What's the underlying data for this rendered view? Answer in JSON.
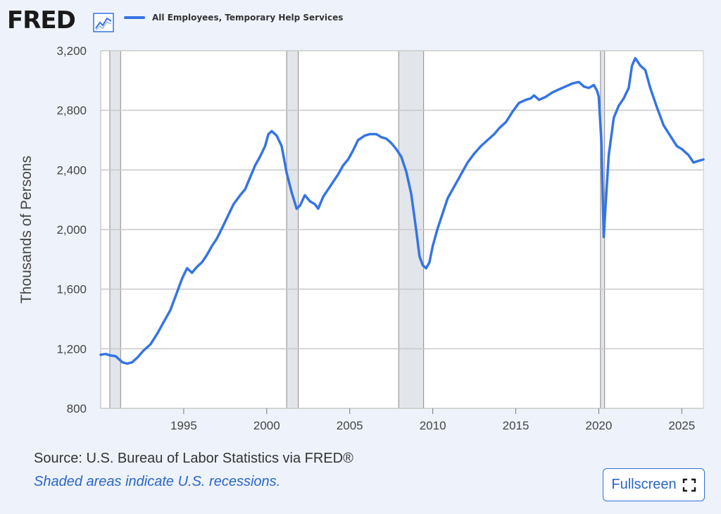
{
  "header": {
    "logo_text": "FRED",
    "logo_trademark": "®",
    "logo_icon": "line-chart-icon"
  },
  "colors": {
    "series": "#3574e3",
    "recession": "#e2e5ea",
    "grid": "#c9c9c9",
    "background": "#eef3fb"
  },
  "chart_data": {
    "type": "line",
    "ylabel": "Thousands of Persons",
    "xlabel": "",
    "ylim": [
      800,
      3200
    ],
    "yticks": [
      800,
      1200,
      1600,
      2000,
      2400,
      2800,
      3200
    ],
    "ytick_labels": [
      "800",
      "1,200",
      "1,600",
      "2,000",
      "2,400",
      "2,800",
      "3,200"
    ],
    "xlim": [
      1990.0,
      2026.3
    ],
    "xticks": [
      1995,
      2000,
      2005,
      2010,
      2015,
      2020,
      2025
    ],
    "xtick_labels": [
      "1995",
      "2000",
      "2005",
      "2010",
      "2015",
      "2020",
      "2025"
    ],
    "legend_position": "top-left",
    "grid": true,
    "recessions": [
      [
        1990.55,
        1991.2
      ],
      [
        2001.2,
        2001.9
      ],
      [
        2007.95,
        2009.45
      ],
      [
        2020.1,
        2020.35
      ]
    ],
    "series": [
      {
        "name": "All Employees, Temporary Help Services",
        "x": [
          1990.0,
          1990.3,
          1990.6,
          1990.9,
          1991.1,
          1991.3,
          1991.6,
          1991.9,
          1992.2,
          1992.6,
          1993.0,
          1993.4,
          1993.8,
          1994.2,
          1994.6,
          1994.9,
          1995.2,
          1995.5,
          1995.8,
          1996.1,
          1996.4,
          1996.7,
          1997.0,
          1997.4,
          1997.7,
          1998.0,
          1998.4,
          1998.7,
          1999.0,
          1999.3,
          1999.6,
          1999.9,
          2000.1,
          2000.3,
          2000.6,
          2000.9,
          2001.2,
          2001.5,
          2001.8,
          2002.0,
          2002.3,
          2002.6,
          2002.9,
          2003.1,
          2003.4,
          2003.7,
          2004.0,
          2004.3,
          2004.6,
          2004.9,
          2005.2,
          2005.5,
          2005.9,
          2006.2,
          2006.6,
          2006.9,
          2007.2,
          2007.5,
          2007.8,
          2008.1,
          2008.4,
          2008.7,
          2009.0,
          2009.2,
          2009.4,
          2009.6,
          2009.8,
          2010.0,
          2010.3,
          2010.6,
          2010.9,
          2011.2,
          2011.5,
          2011.8,
          2012.1,
          2012.5,
          2012.9,
          2013.3,
          2013.7,
          2014.0,
          2014.4,
          2014.8,
          2015.2,
          2015.6,
          2015.9,
          2016.1,
          2016.4,
          2016.8,
          2017.2,
          2017.6,
          2018.0,
          2018.4,
          2018.8,
          2019.1,
          2019.4,
          2019.7,
          2019.9,
          2020.0,
          2020.15,
          2020.3,
          2020.4,
          2020.6,
          2020.9,
          2021.2,
          2021.5,
          2021.8,
          2022.0,
          2022.2,
          2022.5,
          2022.8,
          2023.1,
          2023.5,
          2023.9,
          2024.3,
          2024.7,
          2025.0,
          2025.4,
          2025.7,
          2026.0,
          2026.3
        ],
        "values": [
          1160,
          1165,
          1155,
          1150,
          1130,
          1110,
          1100,
          1110,
          1140,
          1190,
          1230,
          1300,
          1380,
          1460,
          1580,
          1670,
          1740,
          1710,
          1750,
          1780,
          1830,
          1890,
          1940,
          2030,
          2100,
          2170,
          2230,
          2270,
          2350,
          2430,
          2490,
          2560,
          2640,
          2660,
          2630,
          2560,
          2380,
          2250,
          2140,
          2160,
          2230,
          2190,
          2170,
          2140,
          2220,
          2270,
          2320,
          2370,
          2430,
          2470,
          2530,
          2600,
          2630,
          2640,
          2640,
          2620,
          2610,
          2580,
          2540,
          2490,
          2390,
          2240,
          2000,
          1820,
          1760,
          1740,
          1780,
          1890,
          2010,
          2110,
          2210,
          2270,
          2330,
          2390,
          2450,
          2510,
          2560,
          2600,
          2640,
          2680,
          2720,
          2790,
          2850,
          2870,
          2880,
          2900,
          2870,
          2890,
          2920,
          2940,
          2960,
          2980,
          2990,
          2960,
          2950,
          2970,
          2930,
          2890,
          2600,
          1950,
          2150,
          2500,
          2750,
          2830,
          2880,
          2950,
          3100,
          3150,
          3100,
          3070,
          2950,
          2820,
          2700,
          2630,
          2560,
          2540,
          2500,
          2450,
          2460,
          2470
        ]
      }
    ]
  },
  "footer": {
    "source": "Source: U.S. Bureau of Labor Statistics via FRED®",
    "note": "Shaded areas indicate U.S. recessions.",
    "fullscreen_label": "Fullscreen",
    "fullscreen_icon": "expand-icon"
  }
}
